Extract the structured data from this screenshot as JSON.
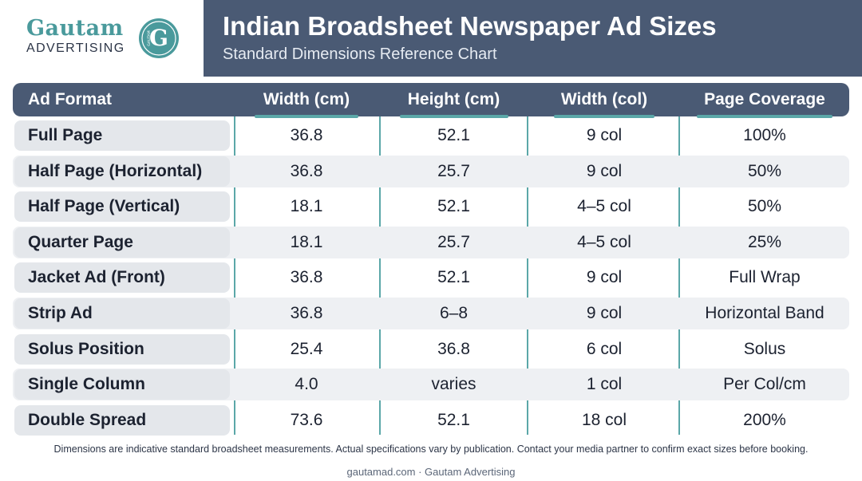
{
  "logo": {
    "word": "Gautam",
    "sub": "ADVERTISING",
    "badge_letter": "G",
    "badge_text": "GAUTAM"
  },
  "header": {
    "title": "Indian Broadsheet Newspaper Ad Sizes",
    "subtitle": "Standard Dimensions Reference Chart"
  },
  "table": {
    "headers": [
      "Ad Format",
      "Width (cm)",
      "Height (cm)",
      "Width (col)",
      "Page Coverage"
    ],
    "rows": [
      [
        "Full Page",
        "36.8",
        "52.1",
        "9 col",
        "100%"
      ],
      [
        "Half Page (Horizontal)",
        "36.8",
        "25.7",
        "9 col",
        "50%"
      ],
      [
        "Half Page (Vertical)",
        "18.1",
        "52.1",
        "4–5 col",
        "50%"
      ],
      [
        "Quarter Page",
        "18.1",
        "25.7",
        "4–5 col",
        "25%"
      ],
      [
        "Jacket Ad (Front)",
        "36.8",
        "52.1",
        "9 col",
        "Full Wrap"
      ],
      [
        "Strip Ad",
        "36.8",
        "6–8",
        "9 col",
        "Horizontal Band"
      ],
      [
        "Solus Position",
        "25.4",
        "36.8",
        "6 col",
        "Solus"
      ],
      [
        "Single Column",
        "4.0",
        "varies",
        "1 col",
        "Per Col/cm"
      ],
      [
        "Double Spread",
        "73.6",
        "52.1",
        "18 col",
        "200%"
      ]
    ]
  },
  "footnote": "Dimensions are indicative standard broadsheet measurements. Actual specifications vary by publication. Contact your media partner to confirm exact sizes before booking.",
  "footer": "gautamad.com · Gautam Advertising",
  "colors": {
    "header": "#4a5a74",
    "accent": "#5ba7a8",
    "row_alt": "#eef0f3"
  }
}
